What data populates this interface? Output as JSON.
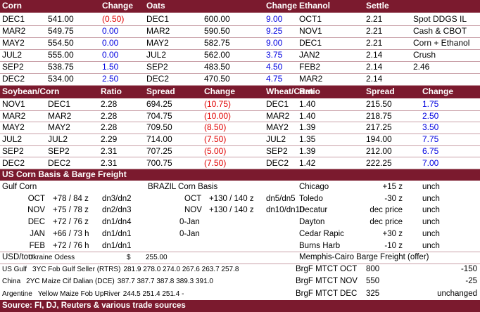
{
  "grains": {
    "headers": [
      "Corn",
      "Change",
      "Oats",
      "Change",
      "Ethanol",
      "Settle"
    ],
    "rows": [
      [
        "DEC1",
        "541.00",
        "(0.50)",
        "DEC1",
        "600.00",
        "9.00",
        "OCT1",
        "2.21",
        "Spot DDGS IL"
      ],
      [
        "MAR2",
        "549.75",
        "0.00",
        "MAR2",
        "590.50",
        "9.25",
        "NOV1",
        "2.21",
        "Cash & CBOT"
      ],
      [
        "MAY2",
        "554.50",
        "0.00",
        "MAY2",
        "582.75",
        "9.00",
        "DEC1",
        "2.21",
        "Corn + Ethanol"
      ],
      [
        "JUL2",
        "555.00",
        "0.00",
        "JUL2",
        "562.00",
        "3.75",
        "JAN2",
        "2.14",
        "Crush"
      ],
      [
        "SEP2",
        "538.75",
        "1.50",
        "SEP2",
        "483.50",
        "4.50",
        "FEB2",
        "2.14",
        "2.46"
      ],
      [
        "DEC2",
        "534.00",
        "2.50",
        "DEC2",
        "470.50",
        "4.75",
        "MAR2",
        "2.14"
      ]
    ]
  },
  "spreads": {
    "headers": [
      "Soybean/Corn",
      "Ratio",
      "Spread",
      "Change",
      "Wheat/Corn",
      "Ratio",
      "Spread",
      "Change"
    ],
    "rows": [
      [
        "NOV1",
        "DEC1",
        "2.28",
        "694.25",
        "(10.75)",
        "DEC1",
        "1.40",
        "215.50",
        "1.75"
      ],
      [
        "MAR2",
        "MAR2",
        "2.28",
        "704.75",
        "(10.00)",
        "MAR2",
        "1.40",
        "218.75",
        "2.50"
      ],
      [
        "MAY2",
        "MAY2",
        "2.28",
        "709.50",
        "(8.50)",
        "MAY2",
        "1.39",
        "217.25",
        "3.50"
      ],
      [
        "JUL2",
        "JUL2",
        "2.29",
        "714.00",
        "(7.50)",
        "JUL2",
        "1.35",
        "194.00",
        "7.75"
      ],
      [
        "SEP2",
        "SEP2",
        "2.31",
        "707.25",
        "(5.00)",
        "SEP2",
        "1.39",
        "212.00",
        "6.75"
      ],
      [
        "DEC2",
        "DEC2",
        "2.31",
        "700.75",
        "(7.50)",
        "DEC2",
        "1.42",
        "222.25",
        "7.00"
      ]
    ]
  },
  "basis": {
    "title": "US Corn Basis & Barge Freight",
    "gulf": {
      "title": "Gulf Corn",
      "rows": [
        [
          "OCT",
          "+78 / 84 z",
          "dn3/dn2"
        ],
        [
          "NOV",
          "+75 / 78 z",
          "dn2/dn3"
        ],
        [
          "DEC",
          "+72 / 76 z",
          "dn1/dn4"
        ],
        [
          "JAN",
          "+66 / 73 h",
          "dn1/dn1"
        ],
        [
          "FEB",
          "+72 / 76 h",
          "dn1/dn1"
        ]
      ]
    },
    "brazil": {
      "title": "BRAZIL Corn Basis",
      "rows": [
        [
          "OCT",
          "+130 / 140 z",
          "dn5/dn5"
        ],
        [
          "NOV",
          "+130 / 140 z",
          "dn10/dn10"
        ],
        [
          "0-Jan"
        ],
        [
          "0-Jan"
        ]
      ]
    },
    "interior": {
      "rows": [
        [
          "Chicago",
          "+15 z",
          "unch"
        ],
        [
          "Toledo",
          "-30 z",
          "unch"
        ],
        [
          "Decatur",
          "dec price",
          "unch"
        ],
        [
          "Dayton",
          "dec price",
          "unch"
        ],
        [
          "Cedar Rapic",
          "+30 z",
          "unch"
        ],
        [
          "Burns Harb",
          "-10 z",
          "unch"
        ]
      ]
    }
  },
  "freight": {
    "usd_label": "USD/ton:",
    "origin": "Ukraine Odess",
    "currency": "$",
    "price": "255.00",
    "fob": [
      [
        "US Gulf",
        "3YC Fob Gulf Seller (RTRS)",
        "281.9 278.0 274.0 267.6 263.7 257.8"
      ],
      [
        "China",
        "2YC Maize Cif Dalian (DCE)",
        "387.7 387.7 387.8 389.3 391.0"
      ],
      [
        "Argentine",
        "Yellow Maize Fob UpRiver",
        "244.5 251.4 251.4 -"
      ]
    ],
    "barge_title": "Memphis-Cairo Barge Freight (offer)",
    "barge": [
      [
        "BrgF MTCT OCT",
        "800",
        "-150"
      ],
      [
        "BrgF MTCT NOV",
        "550",
        "-25"
      ],
      [
        "BrgF MTCT DEC",
        "325",
        "unchanged"
      ]
    ]
  },
  "footer": "Source: FI, DJ, Reuters & various trade sources"
}
